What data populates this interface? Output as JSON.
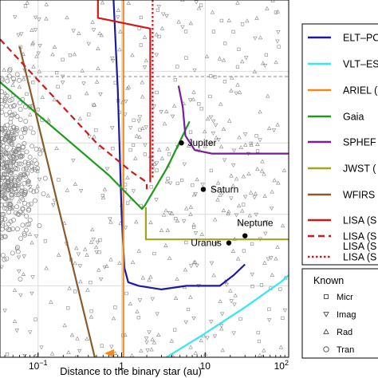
{
  "chart_data": {
    "type": "line",
    "xlabel": "Distance to the binary star (au)",
    "xscale": "log",
    "xlim": [
      0.035,
      100
    ],
    "x_ticks": [
      {
        "value": 0.1,
        "base": "10",
        "exp": "−1"
      },
      {
        "value": 1,
        "label": "1"
      },
      {
        "value": 10,
        "label": "10"
      },
      {
        "value": 100,
        "base": "10",
        "exp": "2"
      }
    ],
    "grid": true,
    "legend_position": "right",
    "series": [
      {
        "name": "ELT–PC",
        "color": "#1a1aa0",
        "style": "solid",
        "points": [
          [
            0.8,
            0
          ],
          [
            0.9,
            0.25
          ],
          [
            1.0,
            0.6
          ],
          [
            1.08,
            0.75
          ],
          [
            1.2,
            0.79
          ],
          [
            1.6,
            0.8
          ],
          [
            3,
            0.81
          ],
          [
            6,
            0.8
          ],
          [
            15,
            0.8
          ],
          [
            22,
            0.77
          ],
          [
            30,
            0.74
          ]
        ]
      },
      {
        "name": "VLT–ES",
        "color": "#33e8ef",
        "style": "solid",
        "points": [
          [
            2.5,
            1.02
          ],
          [
            9,
            0.94
          ],
          [
            30,
            0.86
          ],
          [
            80,
            0.79
          ],
          [
            100,
            0.77
          ]
        ]
      },
      {
        "name": "ARIEL (",
        "color": "#f08a1c",
        "style": "solid",
        "points": [
          [
            1.05,
            0
          ],
          [
            1.05,
            1.02
          ]
        ]
      },
      {
        "name": "Gaia",
        "color": "#1e9a1e",
        "style": "solid",
        "points": [
          [
            0.035,
            0.23
          ],
          [
            0.7,
            0.49
          ],
          [
            1.75,
            0.585
          ],
          [
            1.9,
            0.575
          ],
          [
            3.5,
            0.47
          ],
          [
            6.5,
            0.34
          ]
        ]
      },
      {
        "name": "SPHEF",
        "color": "#7a1c9a",
        "style": "solid",
        "points": [
          [
            4.8,
            0.24
          ],
          [
            5.4,
            0.3
          ],
          [
            5.8,
            0.38
          ],
          [
            7.5,
            0.42
          ],
          [
            12,
            0.43
          ],
          [
            100,
            0.43
          ]
        ]
      },
      {
        "name": "JWST (",
        "color": "#a7a21a",
        "style": "solid",
        "points": [
          [
            1.95,
            0.58
          ],
          [
            1.95,
            0.67
          ],
          [
            100,
            0.67
          ]
        ]
      },
      {
        "name": "WFIRS",
        "color": "#8b5a2b",
        "style": "solid",
        "points": [
          [
            0.06,
            0.13
          ],
          [
            0.5,
            1.02
          ]
        ]
      },
      {
        "name": "LISA (S",
        "color": "#d01818",
        "style": "solid",
        "points": [
          [
            0.52,
            0
          ],
          [
            0.52,
            0.05
          ],
          [
            2.2,
            0.08
          ],
          [
            2.2,
            0.51
          ]
        ]
      },
      {
        "name": "LISA (S",
        "name2": "LISA (S",
        "color": "#d01818",
        "style": "dashed",
        "points": [
          [
            0.035,
            0.11
          ],
          [
            0.5,
            0.4
          ],
          [
            1.3,
            0.48
          ],
          [
            2.0,
            0.51
          ],
          [
            2.0,
            0.53
          ]
        ]
      },
      {
        "name": "LISA (S",
        "color": "#d01818",
        "style": "dotted",
        "points": [
          [
            2.35,
            0
          ],
          [
            2.35,
            0.5
          ]
        ]
      }
    ],
    "points_labels": [
      {
        "name": "Jupiter",
        "x": 5.2,
        "y": 0.4
      },
      {
        "name": "Saturn",
        "x": 9.5,
        "y": 0.53
      },
      {
        "name": "Uranus",
        "x": 19.2,
        "y": 0.68
      },
      {
        "name": "Neptune",
        "x": 30,
        "y": 0.66
      }
    ],
    "known_legend_title": "Known",
    "known_legend_entries": [
      {
        "symbol": "square",
        "label": "Micr"
      },
      {
        "symbol": "triangle-down",
        "label": "Imag"
      },
      {
        "symbol": "triangle-up",
        "label": "Rad"
      },
      {
        "symbol": "circle",
        "label": "Tran"
      }
    ],
    "colors": {
      "grid": "#dcdcdc",
      "scatter": "#888888",
      "axis": "#000000",
      "hline": "#888888"
    }
  }
}
